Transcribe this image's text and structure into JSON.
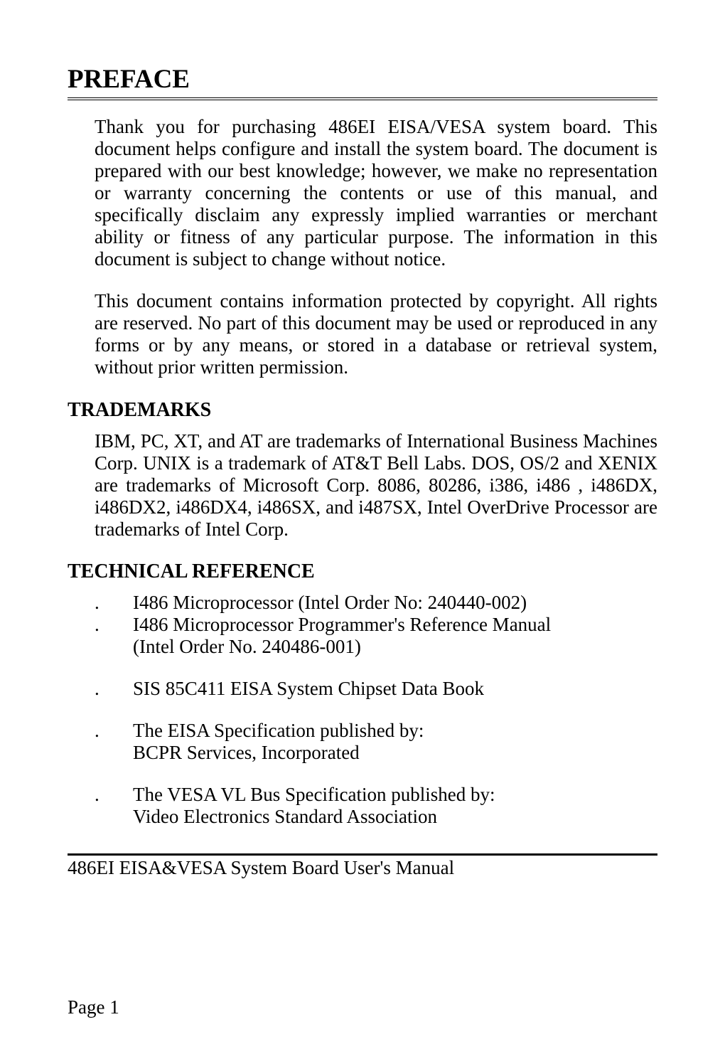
{
  "title": "PREFACE",
  "paragraphs": {
    "p1": "Thank you for purchasing 486EI EISA/VESA system board.  This document helps configure and install the system board.  The document is prepared with our best knowledge; however, we make no representation or warranty concerning the contents or use of this manual, and specifically disclaim any expressly implied warranties or merchant ability or fitness of any particular purpose. The information in this document is subject to change without notice.",
    "p2": "This document contains information protected by copyright. All rights are reserved.  No part of this document may be used or reproduced in any forms or by any means, or stored in a database or retrieval system, without prior written permission."
  },
  "sections": {
    "trademarks": {
      "heading": "TRADEMARKS",
      "body": "IBM, PC, XT, and AT are trademarks of International Business Machines Corp.  UNIX is a trademark of AT&T Bell Labs.  DOS, OS/2 and XENIX are trademarks of Microsoft Corp.  8086, 80286, i386, i486 , i486DX, i486DX2, i486DX4, i486SX, and i487SX, Intel OverDrive Processor are trademarks of Intel Corp."
    },
    "technical_reference": {
      "heading": "TECHNICAL REFERENCE",
      "items": [
        {
          "bullet": ".",
          "line1": "I486 Microprocessor (Intel Order No: 240440-002)"
        },
        {
          "bullet": ".",
          "line1": "I486 Microprocessor Programmer's Reference Manual",
          "line2": "(Intel Order No. 240486-001)"
        },
        {
          "bullet": ".",
          "line1": "SIS 85C411 EISA System Chipset Data Book"
        },
        {
          "bullet": ".",
          "line1": "The EISA Specification published by:",
          "line2": "BCPR Services, Incorporated"
        },
        {
          "bullet": ".",
          "line1": "The VESA VL Bus Specification published by:",
          "line2": "Video Electronics Standard Association"
        }
      ]
    }
  },
  "footer": "486EI EISA&VESA System Board User's Manual",
  "page_number": "Page 1",
  "styling": {
    "background_color": "#ffffff",
    "text_color": "#000000",
    "title_fontsize": 37,
    "subheading_fontsize": 28,
    "body_fontsize": 27,
    "font_family": "Times New Roman"
  }
}
